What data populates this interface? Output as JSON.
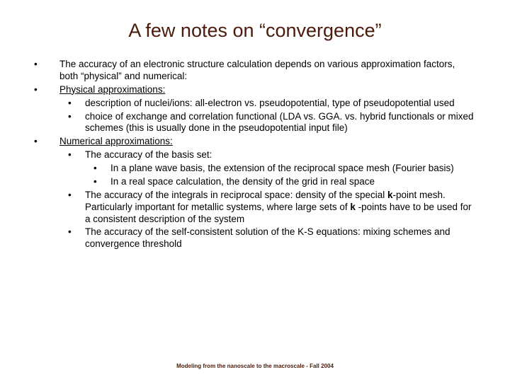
{
  "title": {
    "text": "A few notes on “convergence”",
    "color": "#4a1a0a",
    "fontsize": 27
  },
  "body": {
    "color": "#000000",
    "fontsize": 13.5,
    "line_height": 1.25
  },
  "items": {
    "b1": "The accuracy of an electronic structure calculation depends on various approximation factors, both “physical” and numerical:",
    "b2": "Physical approximations:",
    "b2_1": "description of nuclei/ions: all-electron vs. pseudopotential, type of pseudopotential used",
    "b2_2": "choice of exchange and correlation functional (LDA vs. GGA. vs. hybrid functionals or mixed schemes (this is usually done in the pseudopotential input file)",
    "b3": "Numerical approximations:",
    "b3_1": "The accuracy of the basis set:",
    "b3_1_1": "In a plane wave basis, the extension of the reciprocal space mesh (Fourier basis)",
    "b3_1_2": "In a real space calculation, the density of the grid in real space",
    "b3_2_a": "The accuracy of the integrals in reciprocal space: density of the special ",
    "b3_2_bold1": "k",
    "b3_2_b": "-point mesh. Particularly important for metallic systems, where large sets of ",
    "b3_2_bold2": "k",
    "b3_2_c": " -points have to be used for a consistent description of the system",
    "b3_3": "The accuracy of the self-consistent solution of the K-S equations: mixing schemes and convergence threshold"
  },
  "footer": {
    "text": "Modeling from the nanoscale to the macroscale - Fall 2004",
    "color": "#4a1a0a",
    "fontsize": 8
  }
}
